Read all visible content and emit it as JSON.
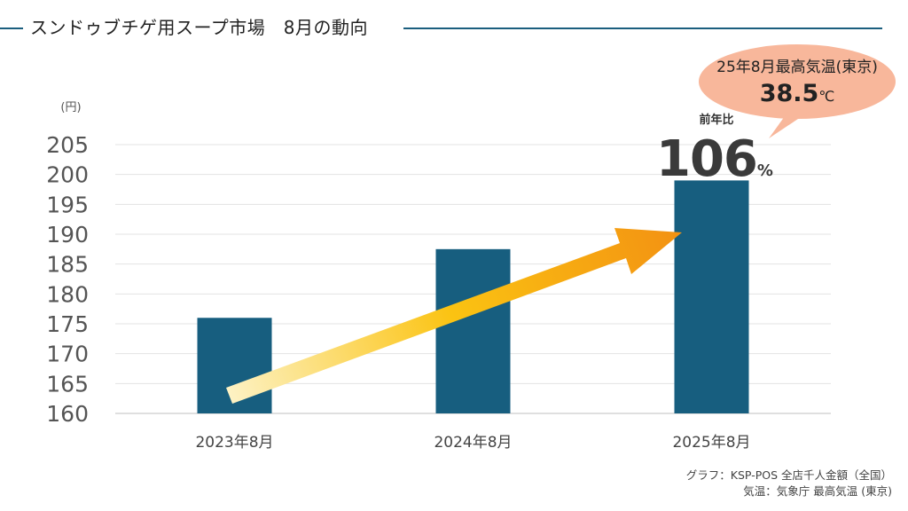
{
  "title": "スンドゥブチゲ用スープ市場　8月の動向",
  "chart_data": {
    "type": "bar",
    "categories": [
      "2023年8月",
      "2024年8月",
      "2025年8月"
    ],
    "series": [
      {
        "values": [
          176,
          187.5,
          199
        ]
      }
    ],
    "yunit": "(円)",
    "ylim": [
      160,
      205
    ],
    "yticks": [
      160,
      165,
      170,
      175,
      180,
      185,
      190,
      195,
      200,
      205
    ],
    "grid": true,
    "bar_color": "#175e7f"
  },
  "yoy": {
    "label": "前年比",
    "value": "106",
    "unit": "%"
  },
  "callout": {
    "label": "25年8月最高気温(東京)",
    "value": "38.5",
    "unit": "℃",
    "color": "#f8b79b"
  },
  "arrow": {
    "gradient_start": "#fdf2c4",
    "gradient_mid": "#fbc312",
    "gradient_end": "#f39312"
  },
  "sources": [
    "グラフ：KSP-POS 全店千人金額（全国）",
    "気温：気象庁 最高気温 (東京)"
  ]
}
